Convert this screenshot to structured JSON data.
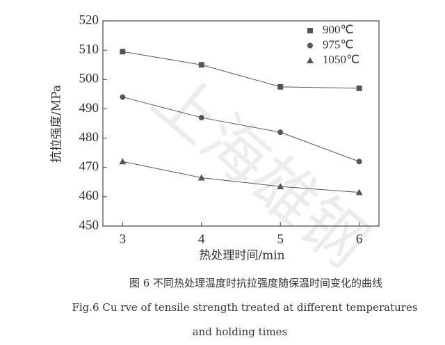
{
  "chart_data": {
    "type": "line",
    "x": [
      3,
      4,
      5,
      6
    ],
    "xlim": [
      2.75,
      6.25
    ],
    "xticks": [
      3,
      4,
      5,
      6
    ],
    "ylim": [
      450,
      520
    ],
    "yticks": [
      450,
      460,
      470,
      480,
      490,
      500,
      510,
      520
    ],
    "xlabel": "热处理时间/min",
    "ylabel": "抗拉强度/MPa",
    "series": [
      {
        "name": "900℃",
        "color": "#555555",
        "marker": "square",
        "values": [
          509.5,
          505,
          497.5,
          497
        ]
      },
      {
        "name": "975℃",
        "color": "#555555",
        "marker": "circle",
        "values": [
          494,
          487,
          482,
          472
        ]
      },
      {
        "name": "1050℃",
        "color": "#555555",
        "marker": "triangle",
        "values": [
          472,
          466.5,
          463.5,
          461.5
        ]
      }
    ],
    "legend": "upper right",
    "watermark": "上海雄钢",
    "caption": [
      "图 6  不同热处理温度时抗拉强度随保温时间变化的曲线",
      "Fig.6 Cu rve of tensile strength treated at different temperatures",
      "and holding times"
    ]
  }
}
